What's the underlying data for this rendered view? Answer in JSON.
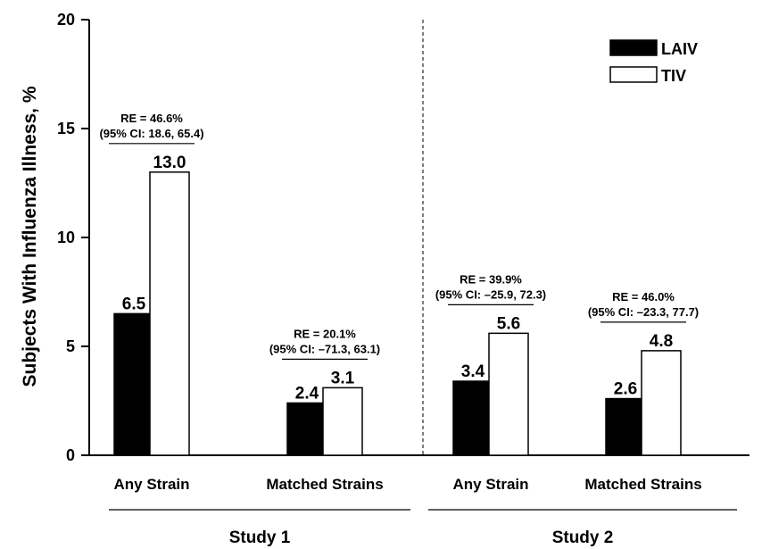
{
  "chart_data": {
    "type": "bar",
    "ylabel": "Subjects With Influenza Illness, %",
    "ylim": [
      0,
      20
    ],
    "yticks": [
      0,
      5,
      10,
      15,
      20
    ],
    "categories": [
      "Any Strain",
      "Matched Strains",
      "Any Strain",
      "Matched Strains"
    ],
    "groups": [
      {
        "label": "Study 1",
        "categories": [
          0,
          1
        ]
      },
      {
        "label": "Study 2",
        "categories": [
          2,
          3
        ]
      }
    ],
    "series": [
      {
        "name": "LAIV",
        "color": "#000000",
        "values": [
          6.5,
          2.4,
          3.4,
          2.6
        ],
        "labels": [
          "6.5",
          "2.4",
          "3.4",
          "2.6"
        ]
      },
      {
        "name": "TIV",
        "color": "#ffffff",
        "values": [
          13.0,
          3.1,
          5.6,
          4.8
        ],
        "labels": [
          "13.0",
          "3.1",
          "5.6",
          "4.8"
        ]
      }
    ],
    "annotations": [
      {
        "category": 0,
        "line1": "RE = 46.6%",
        "line2": "(95% CI: 18.6, 65.4)"
      },
      {
        "category": 1,
        "line1": "RE = 20.1%",
        "line2": "(95% CI: –71.3, 63.1)"
      },
      {
        "category": 2,
        "line1": "RE = 39.9%",
        "line2": "(95% CI: –25.9, 72.3)"
      },
      {
        "category": 3,
        "line1": "RE = 46.0%",
        "line2": "(95% CI: –23.3, 77.7)"
      }
    ],
    "legend_position": "top-right"
  }
}
